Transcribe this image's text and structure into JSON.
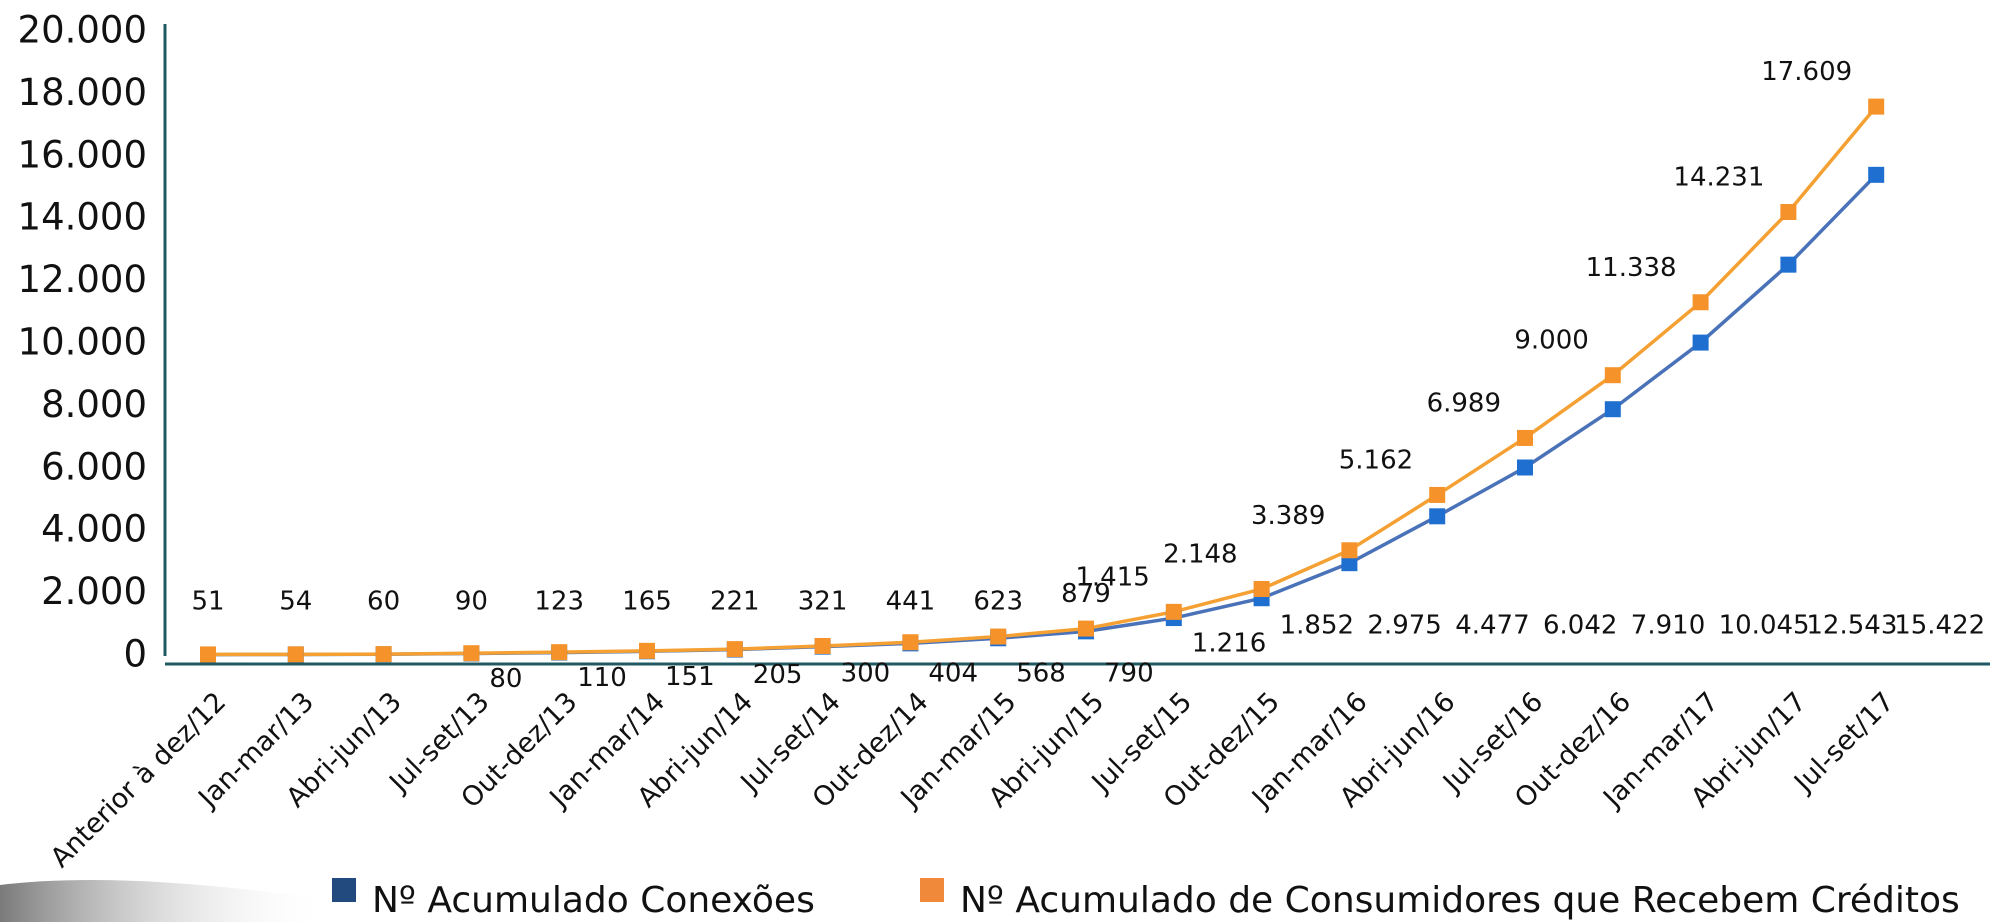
{
  "chart_data": {
    "type": "line",
    "categories": [
      "Anterior à dez/12",
      "Jan-mar/13",
      "Abri-jun/13",
      "Jul-set/13",
      "Out-dez/13",
      "Jan-mar/14",
      "Abri-jun/14",
      "Jul-set/14",
      "Out-dez/14",
      "Jan-mar/15",
      "Abri-jun/15",
      "Jul-set/15",
      "Out-dez/15",
      "Jan-mar/16",
      "Abri-jun/16",
      "Jul-set/16",
      "Out-dez/16",
      "Jan-mar/17",
      "Abri-jun/17",
      "Jul-set/17"
    ],
    "series": [
      {
        "name": "Nº Acumulado Conexões",
        "color": "#1f6fd0",
        "line_color": "#4a72b8",
        "legend_color": "#234a7e",
        "values": [
          45,
          50,
          55,
          80,
          110,
          151,
          205,
          300,
          404,
          568,
          790,
          1216,
          1852,
          2975,
          4477,
          6042,
          7910,
          10045,
          12543,
          15422
        ],
        "value_labels": [
          null,
          null,
          null,
          "80",
          "110",
          "151",
          "205",
          "300",
          "404",
          "568",
          "790",
          "1.216",
          "1.852",
          "2.975",
          "4.477",
          "6.042",
          "7.910",
          "10.045",
          "12.543",
          "15.422"
        ]
      },
      {
        "name": "Nº Acumulado de Consumidores que Recebem Créditos",
        "color": "#f5932a",
        "line_color": "#f5a033",
        "legend_color": "#f08a3a",
        "values": [
          51,
          54,
          60,
          90,
          123,
          165,
          221,
          321,
          441,
          623,
          879,
          1415,
          2148,
          3389,
          5162,
          6989,
          9000,
          11338,
          14231,
          17609
        ],
        "value_labels": [
          "51",
          "54",
          "60",
          "90",
          "123",
          "165",
          "221",
          "321",
          "441",
          "623",
          "879",
          "1.415",
          "2.148",
          "3.389",
          "5.162",
          "6.989",
          "9.000",
          "11.338",
          "14.231",
          "17.609"
        ]
      }
    ],
    "ylim": [
      0,
      20000
    ],
    "yticks": [
      0,
      {
        "value": 2000,
        "label": "2.000"
      },
      {
        "value": 4000,
        "label": "4.000"
      },
      {
        "value": 6000,
        "label": "6.000"
      },
      {
        "value": 8000,
        "label": "8.000"
      },
      {
        "value": 10000,
        "label": "10.000"
      },
      {
        "value": 12000,
        "label": "12.000"
      },
      {
        "value": 14000,
        "label": "14.000"
      },
      {
        "value": 16000,
        "label": "16.000"
      },
      {
        "value": 18000,
        "label": "18.000"
      },
      {
        "value": 20000,
        "label": "20.000"
      }
    ],
    "grid": false,
    "legend": "bottom"
  }
}
